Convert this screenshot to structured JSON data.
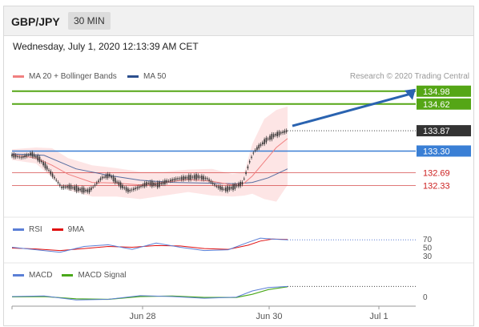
{
  "header": {
    "pair": "GBP/JPY",
    "timeframe": "30 MIN"
  },
  "date_line": "Wednesday, July 1, 2020 12:13:39 AM CET",
  "legend": {
    "ma20_label": "MA 20 + Bollinger Bands",
    "ma20_color": "#f08080",
    "ma50_label": "MA 50",
    "ma50_color": "#2c4f8e"
  },
  "source": "Research © 2020 Trading Central",
  "rsi_legend": {
    "rsi_label": "RSI",
    "rsi_color": "#5b7fd6",
    "ma_label": "9MA",
    "ma_color": "#e01010"
  },
  "macd_legend": {
    "macd_label": "MACD",
    "macd_color": "#5b7fd6",
    "signal_label": "MACD Signal",
    "signal_color": "#4aa81a"
  },
  "colors": {
    "resistance": "#55a616",
    "pivot": "#3a7fd5",
    "support": "#cc1f1f",
    "last": "#333333"
  },
  "chart_data": {
    "type": "line",
    "title": "GBP/JPY 30 MIN",
    "x_tick_labels": [
      "Jun 28",
      "Jun 30",
      "Jul 1"
    ],
    "ylim": [
      131.6,
      135.2
    ],
    "levels": [
      {
        "label": "134.98",
        "value": 134.98,
        "kind": "resistance"
      },
      {
        "label": "134.62",
        "value": 134.62,
        "kind": "resistance"
      },
      {
        "label": "133.87",
        "value": 133.87,
        "kind": "last"
      },
      {
        "label": "133.30",
        "value": 133.3,
        "kind": "pivot"
      },
      {
        "label": "132.69",
        "value": 132.69,
        "kind": "support"
      },
      {
        "label": "132.33",
        "value": 132.33,
        "kind": "support"
      }
    ],
    "price_path": [
      [
        0,
        133.18
      ],
      [
        12,
        133.12
      ],
      [
        24,
        133.22
      ],
      [
        34,
        133.08
      ],
      [
        44,
        132.82
      ],
      [
        54,
        132.52
      ],
      [
        62,
        132.28
      ],
      [
        72,
        132.3
      ],
      [
        84,
        132.22
      ],
      [
        96,
        132.18
      ],
      [
        104,
        132.35
      ],
      [
        112,
        132.55
      ],
      [
        122,
        132.62
      ],
      [
        130,
        132.45
      ],
      [
        138,
        132.3
      ],
      [
        146,
        132.18
      ],
      [
        158,
        132.28
      ],
      [
        170,
        132.4
      ],
      [
        182,
        132.35
      ],
      [
        194,
        132.45
      ],
      [
        206,
        132.52
      ],
      [
        218,
        132.55
      ],
      [
        232,
        132.58
      ],
      [
        244,
        132.52
      ],
      [
        256,
        132.3
      ],
      [
        266,
        132.22
      ],
      [
        276,
        132.28
      ],
      [
        288,
        132.4
      ],
      [
        297,
        133.02
      ],
      [
        302,
        133.28
      ],
      [
        308,
        133.42
      ],
      [
        318,
        133.62
      ],
      [
        328,
        133.75
      ],
      [
        340,
        133.84
      ],
      [
        344,
        133.87
      ]
    ],
    "ma20_path": [
      [
        0,
        133.2
      ],
      [
        30,
        133.1
      ],
      [
        50,
        132.9
      ],
      [
        70,
        132.65
      ],
      [
        100,
        132.42
      ],
      [
        130,
        132.4
      ],
      [
        160,
        132.35
      ],
      [
        190,
        132.42
      ],
      [
        220,
        132.5
      ],
      [
        250,
        132.45
      ],
      [
        275,
        132.35
      ],
      [
        290,
        132.4
      ],
      [
        300,
        132.6
      ],
      [
        315,
        133.0
      ],
      [
        330,
        133.4
      ],
      [
        344,
        133.65
      ]
    ],
    "bb_upper": [
      [
        0,
        133.35
      ],
      [
        30,
        133.4
      ],
      [
        50,
        133.38
      ],
      [
        70,
        133.1
      ],
      [
        100,
        132.9
      ],
      [
        130,
        132.82
      ],
      [
        160,
        132.72
      ],
      [
        190,
        132.72
      ],
      [
        220,
        132.78
      ],
      [
        250,
        132.8
      ],
      [
        275,
        132.65
      ],
      [
        290,
        132.7
      ],
      [
        300,
        133.5
      ],
      [
        315,
        134.2
      ],
      [
        330,
        134.45
      ],
      [
        344,
        134.55
      ]
    ],
    "bb_lower": [
      [
        0,
        133.05
      ],
      [
        30,
        132.95
      ],
      [
        50,
        132.55
      ],
      [
        70,
        132.2
      ],
      [
        100,
        132.02
      ],
      [
        130,
        132.02
      ],
      [
        160,
        131.95
      ],
      [
        190,
        132.05
      ],
      [
        220,
        132.15
      ],
      [
        250,
        132.05
      ],
      [
        275,
        132.02
      ],
      [
        290,
        132.05
      ],
      [
        300,
        132.1
      ],
      [
        315,
        131.95
      ],
      [
        330,
        131.88
      ],
      [
        344,
        132.35
      ]
    ],
    "ma50_path": [
      [
        0,
        133.22
      ],
      [
        40,
        133.18
      ],
      [
        80,
        132.8
      ],
      [
        120,
        132.62
      ],
      [
        160,
        132.48
      ],
      [
        200,
        132.42
      ],
      [
        240,
        132.4
      ],
      [
        280,
        132.38
      ],
      [
        300,
        132.42
      ],
      [
        320,
        132.55
      ],
      [
        344,
        132.8
      ]
    ],
    "rsi": {
      "ticks": [
        "70",
        "50",
        "30"
      ],
      "rsi_path": [
        [
          0,
          50
        ],
        [
          30,
          44
        ],
        [
          60,
          38
        ],
        [
          90,
          52
        ],
        [
          120,
          56
        ],
        [
          150,
          45
        ],
        [
          180,
          60
        ],
        [
          210,
          50
        ],
        [
          240,
          42
        ],
        [
          270,
          44
        ],
        [
          295,
          62
        ],
        [
          310,
          72
        ],
        [
          325,
          70
        ],
        [
          344,
          68
        ]
      ],
      "ma_path": [
        [
          0,
          48
        ],
        [
          30,
          46
        ],
        [
          60,
          42
        ],
        [
          90,
          47
        ],
        [
          120,
          52
        ],
        [
          150,
          50
        ],
        [
          180,
          54
        ],
        [
          210,
          53
        ],
        [
          240,
          47
        ],
        [
          270,
          45
        ],
        [
          295,
          55
        ],
        [
          310,
          65
        ],
        [
          325,
          70
        ],
        [
          344,
          69
        ]
      ]
    },
    "macd": {
      "ticks": [
        "0"
      ],
      "macd_path": [
        [
          0,
          0.0
        ],
        [
          40,
          0.02
        ],
        [
          80,
          -0.12
        ],
        [
          120,
          -0.1
        ],
        [
          160,
          0.03
        ],
        [
          200,
          0.0
        ],
        [
          240,
          -0.06
        ],
        [
          280,
          -0.02
        ],
        [
          300,
          0.2
        ],
        [
          320,
          0.32
        ],
        [
          344,
          0.36
        ]
      ],
      "signal_path": [
        [
          0,
          -0.01
        ],
        [
          40,
          0.0
        ],
        [
          80,
          -0.08
        ],
        [
          120,
          -0.1
        ],
        [
          160,
          0.0
        ],
        [
          200,
          0.02
        ],
        [
          240,
          -0.03
        ],
        [
          280,
          -0.03
        ],
        [
          300,
          0.08
        ],
        [
          320,
          0.25
        ],
        [
          344,
          0.35
        ]
      ]
    }
  }
}
